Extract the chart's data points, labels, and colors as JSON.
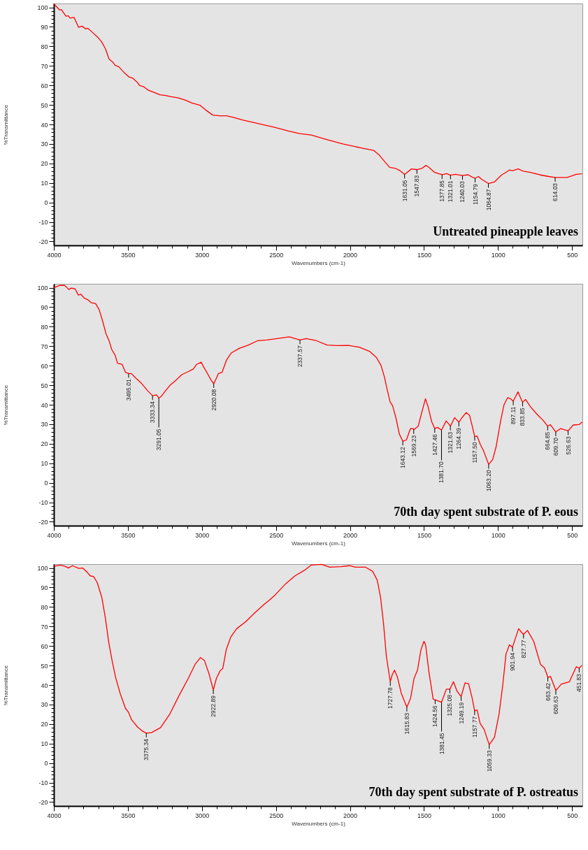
{
  "chart_data": [
    {
      "type": "line",
      "title": "Untreated pineapple leaves",
      "xlabel": "Wavenumbers (cm-1)",
      "ylabel": "%Transmittance",
      "xlim": [
        4000,
        430
      ],
      "ylim": [
        -22,
        102
      ],
      "xticks": [
        4000,
        {
          "value": 3900,
          "label": null
        },
        {
          "value": 3800,
          "label": null
        },
        {
          "value": 3700,
          "label": null
        },
        {
          "value": 3600,
          "label": null
        },
        3500,
        {
          "value": 3400,
          "label": null
        },
        {
          "value": 3300,
          "label": null
        },
        {
          "value": 3200,
          "label": null
        },
        {
          "value": 3100,
          "label": null
        },
        3000,
        {
          "value": 2900,
          "label": null
        },
        {
          "value": 2800,
          "label": null
        },
        {
          "value": 2700,
          "label": null
        },
        {
          "value": 2600,
          "label": null
        },
        2500,
        {
          "value": 2400,
          "label": null
        },
        {
          "value": 2300,
          "label": null
        },
        {
          "value": 2200,
          "label": null
        },
        {
          "value": 2100,
          "label": null
        },
        2000,
        {
          "value": 1900,
          "label": null
        },
        {
          "value": 1800,
          "label": null
        },
        {
          "value": 1700,
          "label": null
        },
        {
          "value": 1600,
          "label": null
        },
        1500,
        {
          "value": 1400,
          "label": null
        },
        {
          "value": 1300,
          "label": null
        },
        {
          "value": 1200,
          "label": null
        },
        {
          "value": 1100,
          "label": null
        },
        1000,
        {
          "value": 900,
          "label": null
        },
        {
          "value": 800,
          "label": null
        },
        {
          "value": 700,
          "label": null
        },
        {
          "value": 600,
          "label": null
        },
        500
      ],
      "yticks": [
        -20,
        {
          "value": -18,
          "label": null
        },
        {
          "value": -16,
          "label": null
        },
        {
          "value": -14,
          "label": null
        },
        {
          "value": -12,
          "label": null
        },
        -10,
        {
          "value": -8,
          "label": null
        },
        {
          "value": -6,
          "label": null
        },
        {
          "value": -4,
          "label": null
        },
        {
          "value": -2,
          "label": null
        },
        0,
        {
          "value": 2,
          "label": null
        },
        {
          "value": 4,
          "label": null
        },
        {
          "value": 6,
          "label": null
        },
        {
          "value": 8,
          "label": null
        },
        10,
        {
          "value": 12,
          "label": null
        },
        {
          "value": 14,
          "label": null
        },
        {
          "value": 16,
          "label": null
        },
        {
          "value": 18,
          "label": null
        },
        20,
        {
          "value": 22,
          "label": null
        },
        {
          "value": 24,
          "label": null
        },
        {
          "value": 26,
          "label": null
        },
        {
          "value": 28,
          "label": null
        },
        30,
        {
          "value": 32,
          "label": null
        },
        {
          "value": 34,
          "label": null
        },
        {
          "value": 36,
          "label": null
        },
        {
          "value": 38,
          "label": null
        },
        40,
        {
          "value": 42,
          "label": null
        },
        {
          "value": 44,
          "label": null
        },
        {
          "value": 46,
          "label": null
        },
        {
          "value": 48,
          "label": null
        },
        50,
        {
          "value": 52,
          "label": null
        },
        {
          "value": 54,
          "label": null
        },
        {
          "value": 56,
          "label": null
        },
        {
          "value": 58,
          "label": null
        },
        60,
        {
          "value": 62,
          "label": null
        },
        {
          "value": 64,
          "label": null
        },
        {
          "value": 66,
          "label": null
        },
        {
          "value": 68,
          "label": null
        },
        70,
        {
          "value": 72,
          "label": null
        },
        {
          "value": 74,
          "label": null
        },
        {
          "value": 76,
          "label": null
        },
        {
          "value": 78,
          "label": null
        },
        80,
        {
          "value": 82,
          "label": null
        },
        {
          "value": 84,
          "label": null
        },
        {
          "value": 86,
          "label": null
        },
        {
          "value": 88,
          "label": null
        },
        90,
        {
          "value": 92,
          "label": null
        },
        {
          "value": 94,
          "label": null
        },
        {
          "value": 96,
          "label": null
        },
        {
          "value": 98,
          "label": null
        },
        100
      ],
      "x": [
        4000,
        3961,
        3949,
        3918,
        3902,
        3890,
        3864,
        3833,
        3810,
        3786,
        3771,
        3748,
        3701,
        3678,
        3652,
        3627,
        3600,
        3585,
        3562,
        3523,
        3492,
        3469,
        3438,
        3419,
        3392,
        3361,
        3330,
        3283,
        3252,
        3206,
        3159,
        3113,
        3067,
        3012,
        2974,
        2927,
        2881,
        2834,
        2788,
        2726,
        2664,
        2587,
        2509,
        2416,
        2340,
        2262,
        2153,
        2044,
        1919,
        1841,
        1802,
        1763,
        1732,
        1693,
        1662,
        1631.05,
        1584,
        1547.83,
        1514,
        1486,
        1459,
        1428,
        1377.85,
        1346,
        1321.01,
        1288,
        1240.03,
        1202,
        1174,
        1154.79,
        1132,
        1109,
        1064.87,
        1023,
        977,
        922,
        899,
        863,
        829,
        782,
        720,
        657,
        614.03,
        533,
        471,
        435
      ],
      "series": [
        {
          "color": "#ff0000",
          "values": [
            101.8,
            98.7,
            98.8,
            95.5,
            95.7,
            94.5,
            94.9,
            89.8,
            90.4,
            89.0,
            89.3,
            87.8,
            84.5,
            82.4,
            78.9,
            73.5,
            71.8,
            70.2,
            69.6,
            66.4,
            64.3,
            63.8,
            61.7,
            59.9,
            59.3,
            57.5,
            56.6,
            55.2,
            54.9,
            54.2,
            53.6,
            52.5,
            51.0,
            49.8,
            47.4,
            44.8,
            44.4,
            44.4,
            43.6,
            42.3,
            41.2,
            39.9,
            38.5,
            36.6,
            35.3,
            34.6,
            32.2,
            29.9,
            27.9,
            26.7,
            24.3,
            20.7,
            18.0,
            17.5,
            16.3,
            14.4,
            17.2,
            16.8,
            17.5,
            19.0,
            17.5,
            15.4,
            14.2,
            14.8,
            14.0,
            14.4,
            13.8,
            14.2,
            13.0,
            12.4,
            13.3,
            11.8,
            9.7,
            10.6,
            14.0,
            16.6,
            16.3,
            17.2,
            16.0,
            15.4,
            14.2,
            13.3,
            12.8,
            12.8,
            14.4,
            14.7
          ]
        }
      ],
      "annotations": [
        {
          "text": "1631.05",
          "x": 1631.05,
          "y": 14.4
        },
        {
          "text": "1547.83",
          "x": 1547.83,
          "y": 16.8
        },
        {
          "text": "1377.85",
          "x": 1377.85,
          "y": 14.2
        },
        {
          "text": "1321.01",
          "x": 1321.01,
          "y": 14.0
        },
        {
          "text": "1240.03",
          "x": 1240.03,
          "y": 13.8
        },
        {
          "text": "1154.79",
          "x": 1154.79,
          "y": 12.4
        },
        {
          "text": "1064.87",
          "x": 1064.87,
          "y": 9.7
        },
        {
          "text": "614.03",
          "x": 614.03,
          "y": 12.8
        }
      ]
    },
    {
      "type": "line",
      "title": "70th day spent substrate of P. eous",
      "xlabel": "Wavenumbers (cm-1)",
      "ylabel": "%Transmittance",
      "xlim": [
        4000,
        430
      ],
      "ylim": [
        -22,
        102
      ],
      "xticks": [
        4000,
        {
          "value": 3900,
          "label": null
        },
        {
          "value": 3800,
          "label": null
        },
        {
          "value": 3700,
          "label": null
        },
        {
          "value": 3600,
          "label": null
        },
        3500,
        {
          "value": 3400,
          "label": null
        },
        {
          "value": 3300,
          "label": null
        },
        {
          "value": 3200,
          "label": null
        },
        {
          "value": 3100,
          "label": null
        },
        3000,
        {
          "value": 2900,
          "label": null
        },
        {
          "value": 2800,
          "label": null
        },
        {
          "value": 2700,
          "label": null
        },
        {
          "value": 2600,
          "label": null
        },
        2500,
        {
          "value": 2400,
          "label": null
        },
        {
          "value": 2300,
          "label": null
        },
        {
          "value": 2200,
          "label": null
        },
        {
          "value": 2100,
          "label": null
        },
        2000,
        {
          "value": 1900,
          "label": null
        },
        {
          "value": 1800,
          "label": null
        },
        {
          "value": 1700,
          "label": null
        },
        {
          "value": 1600,
          "label": null
        },
        1500,
        {
          "value": 1400,
          "label": null
        },
        {
          "value": 1300,
          "label": null
        },
        {
          "value": 1200,
          "label": null
        },
        {
          "value": 1100,
          "label": null
        },
        1000,
        {
          "value": 900,
          "label": null
        },
        {
          "value": 800,
          "label": null
        },
        {
          "value": 700,
          "label": null
        },
        {
          "value": 600,
          "label": null
        },
        500
      ],
      "yticks": [
        -20,
        {
          "value": -18,
          "label": null
        },
        {
          "value": -16,
          "label": null
        },
        {
          "value": -14,
          "label": null
        },
        {
          "value": -12,
          "label": null
        },
        -10,
        {
          "value": -8,
          "label": null
        },
        {
          "value": -6,
          "label": null
        },
        {
          "value": -4,
          "label": null
        },
        {
          "value": -2,
          "label": null
        },
        0,
        {
          "value": 2,
          "label": null
        },
        {
          "value": 4,
          "label": null
        },
        {
          "value": 6,
          "label": null
        },
        {
          "value": 8,
          "label": null
        },
        10,
        {
          "value": 12,
          "label": null
        },
        {
          "value": 14,
          "label": null
        },
        {
          "value": 16,
          "label": null
        },
        {
          "value": 18,
          "label": null
        },
        20,
        {
          "value": 22,
          "label": null
        },
        {
          "value": 24,
          "label": null
        },
        {
          "value": 26,
          "label": null
        },
        {
          "value": 28,
          "label": null
        },
        30,
        {
          "value": 32,
          "label": null
        },
        {
          "value": 34,
          "label": null
        },
        {
          "value": 36,
          "label": null
        },
        {
          "value": 38,
          "label": null
        },
        40,
        {
          "value": 42,
          "label": null
        },
        {
          "value": 44,
          "label": null
        },
        {
          "value": 46,
          "label": null
        },
        {
          "value": 48,
          "label": null
        },
        50,
        {
          "value": 52,
          "label": null
        },
        {
          "value": 54,
          "label": null
        },
        {
          "value": 56,
          "label": null
        },
        {
          "value": 58,
          "label": null
        },
        60,
        {
          "value": 62,
          "label": null
        },
        {
          "value": 64,
          "label": null
        },
        {
          "value": 66,
          "label": null
        },
        {
          "value": 68,
          "label": null
        },
        70,
        {
          "value": 72,
          "label": null
        },
        {
          "value": 74,
          "label": null
        },
        {
          "value": 76,
          "label": null
        },
        {
          "value": 78,
          "label": null
        },
        80,
        {
          "value": 82,
          "label": null
        },
        {
          "value": 84,
          "label": null
        },
        {
          "value": 86,
          "label": null
        },
        {
          "value": 88,
          "label": null
        },
        90,
        {
          "value": 92,
          "label": null
        },
        {
          "value": 94,
          "label": null
        },
        {
          "value": 96,
          "label": null
        },
        {
          "value": 98,
          "label": null
        },
        100
      ],
      "x": [
        4000,
        3958,
        3927,
        3899,
        3881,
        3857,
        3834,
        3818,
        3795,
        3772,
        3749,
        3718,
        3694,
        3671,
        3648,
        3625,
        3609,
        3586,
        3570,
        3539,
        3516,
        3495.01,
        3477,
        3446,
        3407,
        3369,
        3333.34,
        3322,
        3306,
        3291.05,
        3276,
        3245,
        3214,
        3182,
        3136,
        3089,
        3058,
        3035,
        3004,
        2989,
        2958,
        2937,
        2920.08,
        2911,
        2888,
        2864,
        2833,
        2802,
        2748,
        2686,
        2624,
        2562,
        2500,
        2410,
        2337.57,
        2295,
        2225,
        2155,
        2085,
        2008,
        1938,
        1868,
        1821,
        1790,
        1767,
        1747,
        1728,
        1712,
        1689,
        1666,
        1643.12,
        1619,
        1591,
        1576,
        1569.23,
        1539,
        1513,
        1490,
        1472,
        1448,
        1427.46,
        1409,
        1381.7,
        1350,
        1321.63,
        1293,
        1264.39,
        1246,
        1215,
        1192,
        1172,
        1157.5,
        1141,
        1119,
        1099,
        1063.2,
        1036,
        1013,
        982,
        959,
        935,
        917,
        897.11,
        865,
        842,
        833.85,
        814,
        780,
        733,
        694,
        664.85,
        647,
        609.7,
        577,
        526.63,
        492,
        453,
        433
      ],
      "series": [
        {
          "color": "#ff0000",
          "values": [
            100.0,
            101.2,
            101.2,
            99.1,
            99.8,
            99.4,
            96.2,
            96.7,
            94.7,
            93.9,
            92.4,
            91.8,
            88.8,
            83.0,
            76.5,
            72.4,
            68.3,
            65.4,
            61.3,
            60.7,
            56.6,
            56.0,
            56.0,
            53.6,
            50.9,
            47.4,
            44.6,
            44.8,
            45.1,
            43.4,
            44.2,
            47.2,
            50.1,
            52.1,
            55.4,
            57.1,
            58.3,
            60.7,
            61.8,
            59.5,
            55.4,
            52.5,
            50.8,
            52.1,
            56.0,
            56.6,
            63.0,
            66.5,
            68.9,
            70.6,
            72.8,
            73.2,
            73.8,
            74.8,
            73.2,
            73.9,
            72.8,
            70.6,
            70.3,
            70.4,
            69.5,
            67.4,
            64.2,
            60.1,
            54.2,
            47.2,
            41.3,
            39.5,
            33.1,
            24.9,
            21.3,
            21.9,
            27.8,
            27.8,
            27.2,
            29.0,
            36.6,
            43.1,
            38.9,
            31.3,
            27.8,
            28.4,
            27.0,
            31.7,
            29.0,
            33.4,
            31.0,
            33.1,
            36.0,
            34.5,
            28.4,
            23.7,
            23.9,
            19.6,
            16.6,
            9.4,
            11.9,
            18.4,
            31.9,
            40.1,
            43.6,
            43.1,
            41.9,
            46.6,
            42.5,
            41.3,
            42.7,
            38.9,
            34.8,
            31.9,
            29.0,
            29.8,
            26.0,
            27.8,
            26.6,
            29.6,
            29.8,
            31.0
          ]
        }
      ],
      "annotations": [
        {
          "text": "3495.01",
          "x": 3495.01,
          "y": 56.0
        },
        {
          "text": "3333.34",
          "x": 3333.34,
          "y": 44.6
        },
        {
          "text": "3291.05",
          "x": 3291.05,
          "y": 43.4
        },
        {
          "text": "2920.08",
          "x": 2920.08,
          "y": 50.8
        },
        {
          "text": "2337.57",
          "x": 2337.57,
          "y": 73.2
        },
        {
          "text": "1643.12",
          "x": 1643.12,
          "y": 21.3
        },
        {
          "text": "1569.23",
          "x": 1569.23,
          "y": 27.2
        },
        {
          "text": "1427.46",
          "x": 1427.46,
          "y": 27.8
        },
        {
          "text": "1381.70",
          "x": 1381.7,
          "y": 27.0
        },
        {
          "text": "1321.63",
          "x": 1321.63,
          "y": 29.0
        },
        {
          "text": "1264.39",
          "x": 1264.39,
          "y": 31.0
        },
        {
          "text": "1157.50",
          "x": 1157.5,
          "y": 23.7
        },
        {
          "text": "1063.20",
          "x": 1063.2,
          "y": 9.4
        },
        {
          "text": "897.11",
          "x": 897.11,
          "y": 41.9
        },
        {
          "text": "833.85",
          "x": 833.85,
          "y": 41.3
        },
        {
          "text": "664.85",
          "x": 664.85,
          "y": 29.0
        },
        {
          "text": "609.70",
          "x": 609.7,
          "y": 26.0
        },
        {
          "text": "526.63",
          "x": 526.63,
          "y": 26.6
        }
      ]
    },
    {
      "type": "line",
      "title": "70th day spent substrate of P. ostreatus",
      "xlabel": "Wavenumbers (cm-1)",
      "ylabel": "%Transmittance",
      "xlim": [
        4000,
        430
      ],
      "ylim": [
        -22,
        102
      ],
      "xticks": [
        4000,
        {
          "value": 3900,
          "label": null
        },
        {
          "value": 3800,
          "label": null
        },
        {
          "value": 3700,
          "label": null
        },
        {
          "value": 3600,
          "label": null
        },
        3500,
        {
          "value": 3400,
          "label": null
        },
        {
          "value": 3300,
          "label": null
        },
        {
          "value": 3200,
          "label": null
        },
        {
          "value": 3100,
          "label": null
        },
        3000,
        {
          "value": 2900,
          "label": null
        },
        {
          "value": 2800,
          "label": null
        },
        {
          "value": 2700,
          "label": null
        },
        {
          "value": 2600,
          "label": null
        },
        2500,
        {
          "value": 2400,
          "label": null
        },
        {
          "value": 2300,
          "label": null
        },
        {
          "value": 2200,
          "label": null
        },
        {
          "value": 2100,
          "label": null
        },
        2000,
        {
          "value": 1900,
          "label": null
        },
        {
          "value": 1800,
          "label": null
        },
        {
          "value": 1700,
          "label": null
        },
        {
          "value": 1600,
          "label": null
        },
        1500,
        {
          "value": 1400,
          "label": null
        },
        {
          "value": 1300,
          "label": null
        },
        {
          "value": 1200,
          "label": null
        },
        {
          "value": 1100,
          "label": null
        },
        1000,
        {
          "value": 900,
          "label": null
        },
        {
          "value": 800,
          "label": null
        },
        {
          "value": 700,
          "label": null
        },
        {
          "value": 600,
          "label": null
        },
        500
      ],
      "yticks": [
        -20,
        {
          "value": -18,
          "label": null
        },
        {
          "value": -16,
          "label": null
        },
        {
          "value": -14,
          "label": null
        },
        {
          "value": -12,
          "label": null
        },
        -10,
        {
          "value": -8,
          "label": null
        },
        {
          "value": -6,
          "label": null
        },
        {
          "value": -4,
          "label": null
        },
        {
          "value": -2,
          "label": null
        },
        0,
        {
          "value": 2,
          "label": null
        },
        {
          "value": 4,
          "label": null
        },
        {
          "value": 6,
          "label": null
        },
        {
          "value": 8,
          "label": null
        },
        10,
        {
          "value": 12,
          "label": null
        },
        {
          "value": 14,
          "label": null
        },
        {
          "value": 16,
          "label": null
        },
        {
          "value": 18,
          "label": null
        },
        20,
        {
          "value": 22,
          "label": null
        },
        {
          "value": 24,
          "label": null
        },
        {
          "value": 26,
          "label": null
        },
        {
          "value": 28,
          "label": null
        },
        30,
        {
          "value": 32,
          "label": null
        },
        {
          "value": 34,
          "label": null
        },
        {
          "value": 36,
          "label": null
        },
        {
          "value": 38,
          "label": null
        },
        40,
        {
          "value": 42,
          "label": null
        },
        {
          "value": 44,
          "label": null
        },
        {
          "value": 46,
          "label": null
        },
        {
          "value": 48,
          "label": null
        },
        50,
        {
          "value": 52,
          "label": null
        },
        {
          "value": 54,
          "label": null
        },
        {
          "value": 56,
          "label": null
        },
        {
          "value": 58,
          "label": null
        },
        60,
        {
          "value": 62,
          "label": null
        },
        {
          "value": 64,
          "label": null
        },
        {
          "value": 66,
          "label": null
        },
        {
          "value": 68,
          "label": null
        },
        70,
        {
          "value": 72,
          "label": null
        },
        {
          "value": 74,
          "label": null
        },
        {
          "value": 76,
          "label": null
        },
        {
          "value": 78,
          "label": null
        },
        80,
        {
          "value": 82,
          "label": null
        },
        {
          "value": 84,
          "label": null
        },
        {
          "value": 86,
          "label": null
        },
        {
          "value": 88,
          "label": null
        },
        90,
        {
          "value": 92,
          "label": null
        },
        {
          "value": 94,
          "label": null
        },
        {
          "value": 96,
          "label": null
        },
        {
          "value": 98,
          "label": null
        },
        100
      ],
      "x": [
        4000,
        3956,
        3925,
        3902,
        3874,
        3832,
        3805,
        3777,
        3754,
        3731,
        3707,
        3676,
        3653,
        3629,
        3606,
        3583,
        3552,
        3516,
        3497,
        3474,
        3435,
        3404,
        3375.34,
        3341,
        3279,
        3217,
        3155,
        3092,
        3046,
        3010,
        2983,
        2952,
        2922.89,
        2902,
        2877,
        2859,
        2835,
        2804,
        2765,
        2703,
        2641,
        2579,
        2547,
        2508,
        2433,
        2371,
        2308,
        2262,
        2192,
        2137,
        2059,
        2003,
        1964,
        1894,
        1847,
        1816,
        1793,
        1773,
        1754,
        1727.78,
        1715,
        1699,
        1679,
        1653,
        1615.83,
        1590,
        1567,
        1544,
        1520,
        1500,
        1489,
        1466,
        1438,
        1424.56,
        1381.45,
        1349,
        1325.08,
        1301,
        1277,
        1249.19,
        1223,
        1199,
        1175,
        1157.77,
        1141,
        1121,
        1094,
        1071,
        1059.33,
        1024,
        993,
        969,
        946,
        923,
        901.94,
        884,
        861,
        837,
        827.77,
        801,
        759,
        713,
        686,
        663.42,
        645,
        609.63,
        572,
        518,
        471,
        451.83,
        435
      ],
      "series": [
        {
          "color": "#ff0000",
          "values": [
            100.9,
            101.5,
            100.9,
            100.0,
            101.2,
            99.8,
            100.0,
            98.0,
            96.0,
            95.6,
            92.6,
            84.9,
            74.9,
            61.8,
            52.3,
            44.0,
            35.7,
            28.0,
            26.2,
            22.1,
            18.5,
            16.5,
            15.3,
            15.6,
            18.2,
            25.1,
            34.5,
            43.4,
            50.6,
            54.1,
            52.6,
            45.8,
            37.5,
            43.4,
            47.3,
            48.5,
            58.3,
            64.8,
            68.9,
            72.5,
            77.2,
            81.4,
            83.4,
            86.0,
            92.0,
            96.0,
            98.8,
            101.5,
            101.9,
            100.4,
            100.7,
            101.2,
            100.4,
            100.4,
            98.3,
            93.8,
            84.9,
            71.3,
            54.7,
            41.7,
            45.2,
            47.6,
            44.0,
            35.7,
            28.6,
            33.4,
            43.4,
            47.6,
            58.3,
            62.4,
            60.6,
            46.4,
            32.8,
            32.4,
            31.2,
            37.9,
            37.9,
            41.7,
            36.9,
            34.0,
            41.1,
            40.7,
            33.4,
            26.8,
            27.2,
            20.3,
            17.3,
            12.0,
            9.4,
            13.2,
            25.1,
            39.3,
            55.9,
            60.6,
            59.4,
            63.6,
            68.9,
            66.6,
            66.0,
            68.0,
            62.4,
            50.6,
            48.8,
            44.0,
            44.3,
            37.2,
            40.5,
            41.7,
            49.4,
            48.6,
            50.0
          ]
        }
      ],
      "annotations": [
        {
          "text": "3375.34",
          "x": 3375.34,
          "y": 15.3
        },
        {
          "text": "2922.89",
          "x": 2922.89,
          "y": 37.5
        },
        {
          "text": "1727.78",
          "x": 1727.78,
          "y": 41.7
        },
        {
          "text": "1615.83",
          "x": 1615.83,
          "y": 28.6
        },
        {
          "text": "1424.56",
          "x": 1424.56,
          "y": 32.4
        },
        {
          "text": "1381.45",
          "x": 1381.45,
          "y": 31.2
        },
        {
          "text": "1325.08",
          "x": 1325.08,
          "y": 37.9
        },
        {
          "text": "1249.19",
          "x": 1249.19,
          "y": 34.0
        },
        {
          "text": "1157.77",
          "x": 1157.77,
          "y": 26.8
        },
        {
          "text": "1059.33",
          "x": 1059.33,
          "y": 9.4
        },
        {
          "text": "901.94",
          "x": 901.94,
          "y": 59.4
        },
        {
          "text": "827.77",
          "x": 827.77,
          "y": 66.0
        },
        {
          "text": "663.42",
          "x": 663.42,
          "y": 44.0
        },
        {
          "text": "609.63",
          "x": 609.63,
          "y": 37.2
        },
        {
          "text": "451.83",
          "x": 451.83,
          "y": 48.6
        }
      ]
    }
  ]
}
